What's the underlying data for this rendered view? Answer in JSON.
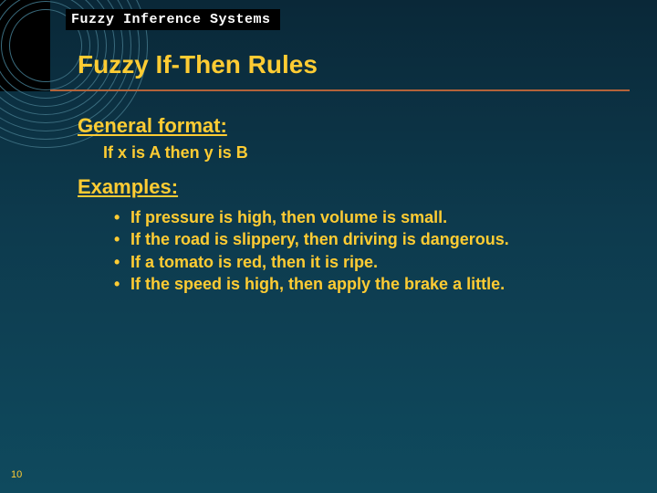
{
  "colors": {
    "bg_top": "#0a2838",
    "bg_mid": "#0d3a4d",
    "bg_bottom": "#0f4a5e",
    "accent_text": "#ffcc33",
    "underline": "#b3633a",
    "header_bg": "#000000",
    "header_text": "#ffffff",
    "arc_stroke": "#3a6b7d"
  },
  "header": {
    "label": "Fuzzy Inference Systems"
  },
  "title": "Fuzzy If-Then Rules",
  "sections": {
    "general": {
      "heading": "General format:",
      "body": "If x is A then y is B"
    },
    "examples": {
      "heading": "Examples:",
      "items": [
        "If pressure is high, then volume is small.",
        "If the road is slippery, then driving is dangerous.",
        "If a tomato is red, then it is ripe.",
        "If the speed is high, then apply the brake a little."
      ]
    }
  },
  "page_number": "10",
  "typography": {
    "title_fontsize": 28,
    "heading_fontsize": 22,
    "body_fontsize": 18,
    "header_fontsize": 15,
    "pagenum_fontsize": 11
  },
  "decor": {
    "arc_count": 9,
    "arc_center": [
      -10,
      -10
    ],
    "arc_start_radius": 40,
    "arc_step": 9
  }
}
